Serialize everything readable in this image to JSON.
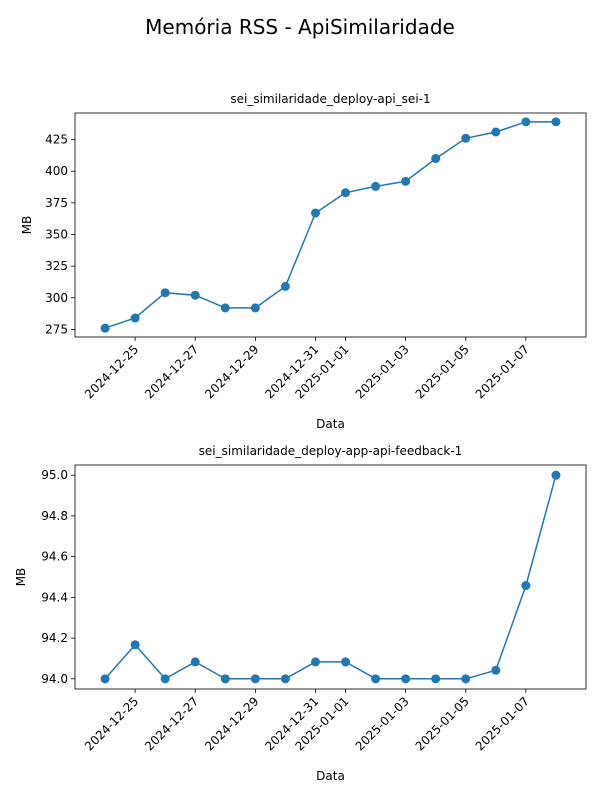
{
  "figure": {
    "title": "Memória RSS - ApiSimilaridade"
  },
  "chart_data": [
    {
      "type": "line",
      "title": "sei_similaridade_deploy-api_sei-1",
      "xlabel": "Data",
      "ylabel": "MB",
      "color": "#1f77b4",
      "marker": "circle",
      "x": [
        "2024-12-24",
        "2024-12-25",
        "2024-12-26",
        "2024-12-27",
        "2024-12-28",
        "2024-12-29",
        "2024-12-30",
        "2024-12-31",
        "2025-01-01",
        "2025-01-02",
        "2025-01-03",
        "2025-01-04",
        "2025-01-05",
        "2025-01-06",
        "2025-01-07",
        "2025-01-08"
      ],
      "values": [
        276,
        284,
        304,
        302,
        292,
        292,
        309,
        367,
        383,
        388,
        392,
        410,
        426,
        431,
        439,
        439
      ],
      "xticks": [
        "2024-12-25",
        "2024-12-27",
        "2024-12-29",
        "2024-12-31",
        "2025-01-01",
        "2025-01-03",
        "2025-01-05",
        "2025-01-07"
      ],
      "yticks": [
        275,
        300,
        325,
        350,
        375,
        400,
        425
      ],
      "ylim": [
        269,
        446
      ],
      "xlim": [
        "2024-12-23",
        "2025-01-09"
      ],
      "grid": false
    },
    {
      "type": "line",
      "title": "sei_similaridade_deploy-app-api-feedback-1",
      "xlabel": "Data",
      "ylabel": "MB",
      "color": "#1f77b4",
      "marker": "circle",
      "x": [
        "2024-12-24",
        "2024-12-25",
        "2024-12-26",
        "2024-12-27",
        "2024-12-28",
        "2024-12-29",
        "2024-12-30",
        "2024-12-31",
        "2025-01-01",
        "2025-01-02",
        "2025-01-03",
        "2025-01-04",
        "2025-01-05",
        "2025-01-06",
        "2025-01-07",
        "2025-01-08"
      ],
      "values": [
        94.0,
        94.167,
        94.0,
        94.083,
        94.0,
        94.0,
        94.0,
        94.083,
        94.083,
        94.0,
        94.0,
        94.0,
        94.0,
        94.042,
        94.458,
        95.0
      ],
      "xticks": [
        "2024-12-25",
        "2024-12-27",
        "2024-12-29",
        "2024-12-31",
        "2025-01-01",
        "2025-01-03",
        "2025-01-05",
        "2025-01-07"
      ],
      "ytick_labels": [
        "94.0",
        "94.2",
        "94.4",
        "94.6",
        "94.8",
        "95.0"
      ],
      "yticks": [
        94.0,
        94.2,
        94.4,
        94.6,
        94.8,
        95.0
      ],
      "ylim": [
        93.95,
        95.05
      ],
      "xlim": [
        "2024-12-23",
        "2025-01-09"
      ],
      "grid": false
    }
  ]
}
